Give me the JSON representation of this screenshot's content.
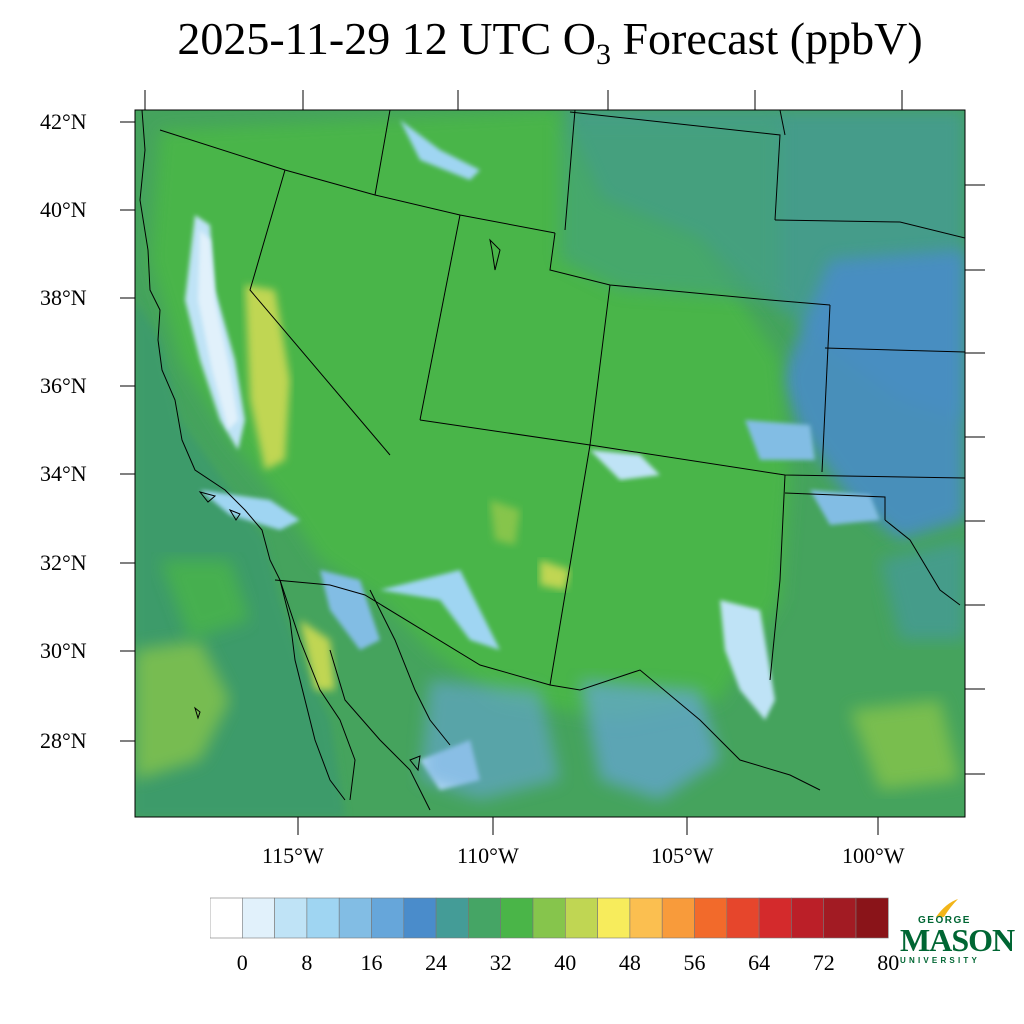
{
  "title": {
    "prefix": "2025-11-29 12 UTC O",
    "subscript": "3",
    "suffix": " Forecast (ppbV)"
  },
  "map": {
    "lat_labels": [
      "42°N",
      "40°N",
      "38°N",
      "36°N",
      "34°N",
      "32°N",
      "30°N",
      "28°N"
    ],
    "lon_labels": [
      "115°W",
      "110°W",
      "105°W",
      "100°W"
    ],
    "background_color": "#45a35d",
    "ocean_color": "#3d9b6a"
  },
  "colorbar": {
    "colors": [
      "#ffffff",
      "#e1f1fb",
      "#bfe3f6",
      "#9fd5f2",
      "#82bde4",
      "#66a6da",
      "#4a8ccb",
      "#449c97",
      "#45a565",
      "#4ab548",
      "#86c54c",
      "#c0d653",
      "#f7ec5c",
      "#fbbf50",
      "#f89b3b",
      "#f26a2b",
      "#e6462c",
      "#d42a2c",
      "#bb1f28",
      "#a21b23",
      "#8a1419"
    ],
    "tick_labels": [
      "0",
      "8",
      "16",
      "24",
      "32",
      "40",
      "48",
      "56",
      "64",
      "72",
      "80"
    ]
  },
  "logo": {
    "line1": "GEORGE",
    "line2": "MASON",
    "line3": "UNIVERSITY",
    "color": "#006633",
    "accent": "#f2b519"
  }
}
